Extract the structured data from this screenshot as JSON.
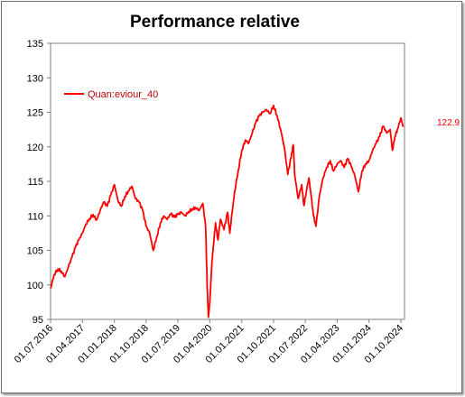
{
  "chart_data": {
    "type": "line",
    "title": "Performance relative",
    "xlabel": "",
    "ylabel": "",
    "ylim": [
      95,
      135
    ],
    "yticks": [
      95,
      100,
      105,
      110,
      115,
      120,
      125,
      130,
      135
    ],
    "xlim": [
      "2016-07-01",
      "2024-11-01"
    ],
    "xtick_labels": [
      "01.07.2016",
      "01.04.2017",
      "01.01.2018",
      "01.10.2018",
      "01.07.2019",
      "01.04.2020",
      "01.01.2021",
      "01.10.2021",
      "01.07.2022",
      "01.04.2023",
      "01.01.2024",
      "01.10.2024"
    ],
    "xtick_dates": [
      "2016-07-01",
      "2017-04-01",
      "2018-01-01",
      "2018-10-01",
      "2019-07-01",
      "2020-04-01",
      "2021-01-01",
      "2021-10-01",
      "2022-07-01",
      "2023-04-01",
      "2024-01-01",
      "2024-10-01"
    ],
    "grid": false,
    "legend_position": "top-left",
    "series": [
      {
        "name": "Quan:eviour_40",
        "color": "#ff0000",
        "end_label": "122.9",
        "points": [
          [
            "2016-07-01",
            99.5
          ],
          [
            "2016-08-01",
            101.5
          ],
          [
            "2016-09-01",
            102.3
          ],
          [
            "2016-10-01",
            102.0
          ],
          [
            "2016-11-01",
            101.2
          ],
          [
            "2016-12-01",
            102.6
          ],
          [
            "2017-01-01",
            104.0
          ],
          [
            "2017-02-01",
            105.5
          ],
          [
            "2017-03-01",
            106.5
          ],
          [
            "2017-04-01",
            107.5
          ],
          [
            "2017-05-01",
            108.8
          ],
          [
            "2017-06-01",
            109.6
          ],
          [
            "2017-07-01",
            110.2
          ],
          [
            "2017-08-01",
            109.4
          ],
          [
            "2017-09-01",
            110.8
          ],
          [
            "2017-10-01",
            112.0
          ],
          [
            "2017-11-01",
            111.4
          ],
          [
            "2017-12-01",
            113.0
          ],
          [
            "2018-01-01",
            114.5
          ],
          [
            "2018-02-01",
            112.2
          ],
          [
            "2018-03-01",
            111.4
          ],
          [
            "2018-04-01",
            112.8
          ],
          [
            "2018-05-01",
            113.6
          ],
          [
            "2018-06-01",
            114.3
          ],
          [
            "2018-07-01",
            112.5
          ],
          [
            "2018-08-01",
            112.0
          ],
          [
            "2018-09-01",
            110.8
          ],
          [
            "2018-10-01",
            108.5
          ],
          [
            "2018-11-01",
            107.5
          ],
          [
            "2018-12-01",
            105.0
          ],
          [
            "2019-01-01",
            107.0
          ],
          [
            "2019-02-01",
            109.0
          ],
          [
            "2019-03-01",
            110.0
          ],
          [
            "2019-04-01",
            109.5
          ],
          [
            "2019-05-01",
            110.3
          ],
          [
            "2019-06-01",
            109.8
          ],
          [
            "2019-07-01",
            110.2
          ],
          [
            "2019-08-01",
            110.5
          ],
          [
            "2019-09-01",
            110.0
          ],
          [
            "2019-10-01",
            110.6
          ],
          [
            "2019-11-01",
            111.0
          ],
          [
            "2019-12-01",
            111.2
          ],
          [
            "2020-01-01",
            110.8
          ],
          [
            "2020-02-01",
            111.8
          ],
          [
            "2020-02-25",
            108.5
          ],
          [
            "2020-03-10",
            99.5
          ],
          [
            "2020-03-20",
            95.3
          ],
          [
            "2020-04-01",
            97.5
          ],
          [
            "2020-04-20",
            103.5
          ],
          [
            "2020-05-01",
            105.5
          ],
          [
            "2020-05-20",
            109.0
          ],
          [
            "2020-06-10",
            106.5
          ],
          [
            "2020-07-01",
            109.5
          ],
          [
            "2020-08-01",
            108.0
          ],
          [
            "2020-09-01",
            110.5
          ],
          [
            "2020-09-20",
            107.5
          ],
          [
            "2020-10-10",
            110.5
          ],
          [
            "2020-11-01",
            113.5
          ],
          [
            "2020-12-01",
            116.5
          ],
          [
            "2021-01-01",
            119.5
          ],
          [
            "2021-02-01",
            121.0
          ],
          [
            "2021-03-01",
            120.5
          ],
          [
            "2021-04-01",
            122.0
          ],
          [
            "2021-05-01",
            123.5
          ],
          [
            "2021-06-01",
            124.5
          ],
          [
            "2021-07-01",
            125.0
          ],
          [
            "2021-08-01",
            125.4
          ],
          [
            "2021-09-01",
            124.8
          ],
          [
            "2021-10-01",
            126.0
          ],
          [
            "2021-11-01",
            124.5
          ],
          [
            "2021-12-01",
            122.5
          ],
          [
            "2022-01-01",
            120.0
          ],
          [
            "2022-02-01",
            116.0
          ],
          [
            "2022-03-01",
            118.5
          ],
          [
            "2022-03-20",
            120.3
          ],
          [
            "2022-04-01",
            116.0
          ],
          [
            "2022-05-01",
            112.5
          ],
          [
            "2022-06-01",
            114.5
          ],
          [
            "2022-06-20",
            111.5
          ],
          [
            "2022-07-10",
            113.5
          ],
          [
            "2022-08-01",
            115.5
          ],
          [
            "2022-08-20",
            113.0
          ],
          [
            "2022-09-10",
            110.0
          ],
          [
            "2022-10-01",
            108.5
          ],
          [
            "2022-11-01",
            113.0
          ],
          [
            "2022-12-01",
            115.5
          ],
          [
            "2023-01-01",
            117.0
          ],
          [
            "2023-02-01",
            118.0
          ],
          [
            "2023-03-01",
            116.5
          ],
          [
            "2023-04-01",
            117.5
          ],
          [
            "2023-05-01",
            118.0
          ],
          [
            "2023-06-01",
            117.0
          ],
          [
            "2023-07-01",
            118.3
          ],
          [
            "2023-08-01",
            117.2
          ],
          [
            "2023-09-01",
            115.8
          ],
          [
            "2023-10-01",
            113.5
          ],
          [
            "2023-11-01",
            116.5
          ],
          [
            "2023-12-01",
            117.5
          ],
          [
            "2024-01-01",
            118.0
          ],
          [
            "2024-02-01",
            119.5
          ],
          [
            "2024-03-01",
            120.5
          ],
          [
            "2024-04-01",
            121.5
          ],
          [
            "2024-05-01",
            123.0
          ],
          [
            "2024-06-01",
            122.0
          ],
          [
            "2024-07-01",
            122.5
          ],
          [
            "2024-07-20",
            119.5
          ],
          [
            "2024-08-10",
            121.5
          ],
          [
            "2024-09-01",
            122.5
          ],
          [
            "2024-10-01",
            124.2
          ],
          [
            "2024-10-20",
            122.9
          ]
        ]
      }
    ]
  }
}
